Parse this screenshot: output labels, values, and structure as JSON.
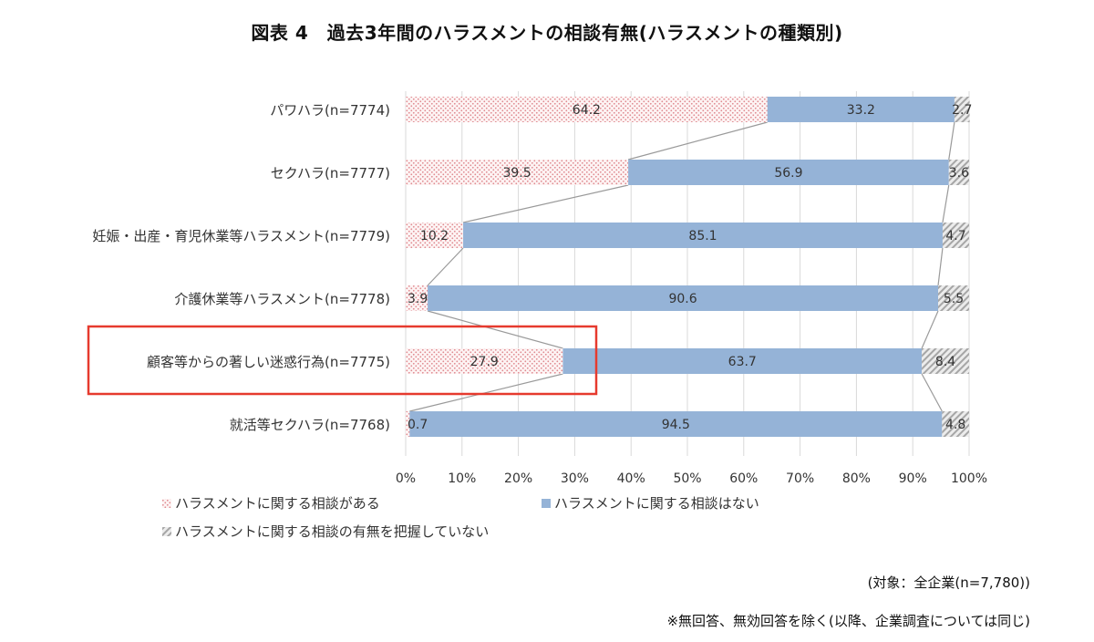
{
  "title": "図表 4　過去3年間のハラスメントの相談有無(ハラスメントの種類別)",
  "target_note": "(対象：全企業(n=7,780))",
  "exclusion_note": "※無回答、無効回答を除く(以降、企業調査については同じ)",
  "colors": {
    "consulted": "#e8a0a4",
    "not_consulted": "#95b3d7",
    "unknown": "#a6a6a6",
    "highlight": "#e63a2e",
    "connector": "#9a9a9a"
  },
  "chart_data": {
    "type": "bar",
    "orientation": "horizontal",
    "stacked": true,
    "percent_stacked": true,
    "categories": [
      "パワハラ(n=7774)",
      "セクハラ(n=7777)",
      "妊娠・出産・育児休業等ハラスメント(n=7779)",
      "介護休業等ハラスメント(n=7778)",
      "顧客等からの著しい迷惑行為(n=7775)",
      "就活等セクハラ(n=7768)"
    ],
    "series": [
      {
        "name": "ハラスメントに関する相談がある",
        "values": [
          64.2,
          39.5,
          10.2,
          3.9,
          27.9,
          0.7
        ],
        "pattern": "dots"
      },
      {
        "name": "ハラスメントに関する相談はない",
        "values": [
          33.2,
          56.9,
          85.1,
          90.6,
          63.7,
          94.5
        ],
        "pattern": "solid"
      },
      {
        "name": "ハラスメントに関する相談の有無を把握していない",
        "values": [
          2.7,
          3.6,
          4.7,
          5.5,
          8.4,
          4.8
        ],
        "pattern": "hatch"
      }
    ],
    "value_labels": [
      [
        "64.2",
        "39.5",
        "10.2",
        "3.9",
        "27.9",
        "0.7"
      ],
      [
        "33.2",
        "56.9",
        "85.1",
        "90.6",
        "63.7",
        "94.5"
      ],
      [
        "2.7",
        "3.6",
        "4.7",
        "5.5",
        "8.4",
        "4.8"
      ]
    ],
    "xlim": [
      0,
      100
    ],
    "x_ticks": [
      "0%",
      "10%",
      "20%",
      "30%",
      "40%",
      "50%",
      "60%",
      "70%",
      "80%",
      "90%",
      "100%"
    ],
    "series_lines": true,
    "highlighted_category": 4,
    "legend_position": "bottom-left"
  }
}
